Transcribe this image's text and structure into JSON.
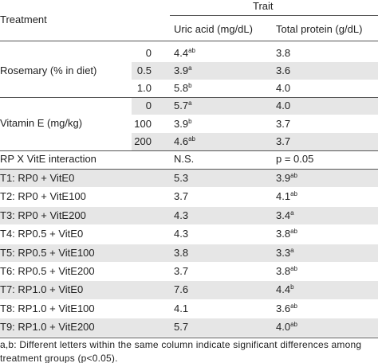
{
  "header": {
    "treatment": "Treatment",
    "trait": "Trait",
    "columns": [
      "Uric acid (mg/dL)",
      "Total protein (g/dL)"
    ]
  },
  "sections": [
    {
      "label": "Rosemary (% in diet)",
      "rows": [
        {
          "level": "0",
          "uric": {
            "text": "4.4",
            "sup": "ab"
          },
          "protein": {
            "text": "3.8"
          }
        },
        {
          "level": "0.5",
          "uric": {
            "text": "3.9",
            "sup": "a"
          },
          "protein": {
            "text": "3.6"
          }
        },
        {
          "level": "1.0",
          "uric": {
            "text": "5.8",
            "sup": "b"
          },
          "protein": {
            "text": "4.0"
          }
        }
      ]
    },
    {
      "label": "Vitamin E (mg/kg)",
      "rows": [
        {
          "level": "0",
          "uric": {
            "text": "5.7",
            "sup": "a"
          },
          "protein": {
            "text": "4.0"
          }
        },
        {
          "level": "100",
          "uric": {
            "text": "3.9",
            "sup": "b"
          },
          "protein": {
            "text": "3.7"
          }
        },
        {
          "level": "200",
          "uric": {
            "text": "4.6",
            "sup": "ab"
          },
          "protein": {
            "text": "3.7"
          }
        }
      ]
    }
  ],
  "interaction": {
    "label": "RP X VitE interaction",
    "uric": {
      "text": "N.S."
    },
    "protein": {
      "text": "p = 0.05"
    }
  },
  "treatments": [
    {
      "label": "T1: RP0 + VitE0",
      "uric": {
        "text": "5.3"
      },
      "protein": {
        "text": "3.9",
        "sup": "ab"
      }
    },
    {
      "label": "T2: RP0 + VitE100",
      "uric": {
        "text": "3.7"
      },
      "protein": {
        "text": "4.1",
        "sup": "ab"
      }
    },
    {
      "label": "T3: RP0 + VitE200",
      "uric": {
        "text": "4.3"
      },
      "protein": {
        "text": "3.4",
        "sup": "a"
      }
    },
    {
      "label": "T4: RP0.5 + VitE0",
      "uric": {
        "text": "4.3"
      },
      "protein": {
        "text": "3.8",
        "sup": "ab"
      }
    },
    {
      "label": "T5: RP0.5 + VitE100",
      "uric": {
        "text": "3.8"
      },
      "protein": {
        "text": "3.3",
        "sup": "a"
      }
    },
    {
      "label": "T6: RP0.5 + VitE200",
      "uric": {
        "text": "3.7"
      },
      "protein": {
        "text": "3.8",
        "sup": "ab"
      }
    },
    {
      "label": "T7: RP1.0 + VitE0",
      "uric": {
        "text": "7.6"
      },
      "protein": {
        "text": "4.4",
        "sup": "b"
      }
    },
    {
      "label": "T8: RP1.0 + VitE100",
      "uric": {
        "text": "4.1"
      },
      "protein": {
        "text": "3.6",
        "sup": "ab"
      }
    },
    {
      "label": "T9: RP1.0 + VitE200",
      "uric": {
        "text": "5.7"
      },
      "protein": {
        "text": "4.0",
        "sup": "ab"
      }
    }
  ],
  "footnote": [
    "a,b: Different letters within the same column indicate significant differences among",
    "treatment groups (p<0.05)."
  ]
}
